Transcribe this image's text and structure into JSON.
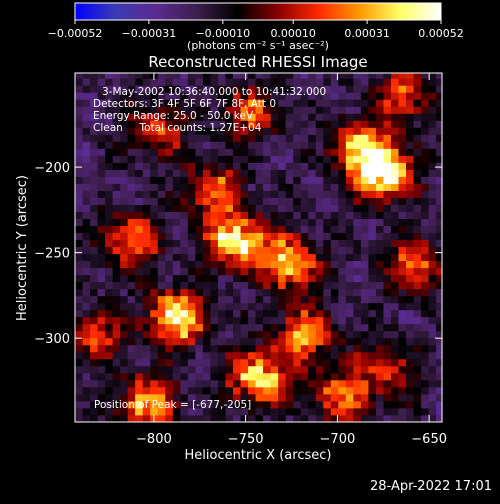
{
  "chart_data": {
    "type": "heatmap",
    "title": "Reconstructed RHESSI Image",
    "xlabel": "Heliocentric X (arcsec)",
    "ylabel": "Heliocentric Y (arcsec)",
    "xlim": [
      -843,
      -643
    ],
    "ylim": [
      -349,
      -145
    ],
    "x_ticks": [
      {
        "value": -800,
        "label": "−800"
      },
      {
        "value": -750,
        "label": "−750"
      },
      {
        "value": -700,
        "label": "−700"
      },
      {
        "value": -650,
        "label": "−650"
      }
    ],
    "y_ticks": [
      {
        "value": -200,
        "label": "−200"
      },
      {
        "value": -250,
        "label": "−250"
      },
      {
        "value": -300,
        "label": "−300"
      }
    ],
    "colorbar": {
      "min": -0.00052,
      "max": 0.00052,
      "ticks": [
        {
          "value": -0.00052,
          "label": "−0.00052"
        },
        {
          "value": -0.00031,
          "label": "−0.00031"
        },
        {
          "value": -0.0001,
          "label": "−0.00010"
        },
        {
          "value": 0.0001,
          "label": "0.00010"
        },
        {
          "value": 0.00031,
          "label": "0.00031"
        },
        {
          "value": 0.00052,
          "label": "0.00052"
        }
      ],
      "unit_label": "(photons cm⁻² s⁻¹ asec⁻²)",
      "colors": [
        "#0000ff",
        "#3b3bb4",
        "#5b2a8f",
        "#3d1e4d",
        "#000000",
        "#8b0000",
        "#ff2a00",
        "#ff9900",
        "#ffff66",
        "#ffffff"
      ]
    },
    "annotations": [
      "3-May-2002 10:36:40.000 to 10:41:32.000",
      "Detectors: 3F 4F 5F 6F 7F 8F, Att 0",
      "Energy Range: 25.0 - 50.0 keV",
      "Clean     Total counts: 1.27E+04"
    ],
    "peak_label": "Position of Peak = [-677,-205]",
    "sources": [
      {
        "x": -757,
        "y": -245,
        "value": 0.00048
      },
      {
        "x": -677,
        "y": -205,
        "value": 0.00052
      },
      {
        "x": -790,
        "y": -290,
        "value": 0.00046
      },
      {
        "x": -728,
        "y": -258,
        "value": 0.00036
      },
      {
        "x": -745,
        "y": -325,
        "value": 0.0004
      },
      {
        "x": -805,
        "y": -340,
        "value": 0.00034
      },
      {
        "x": -720,
        "y": -300,
        "value": 0.00028
      },
      {
        "x": -690,
        "y": -190,
        "value": 0.0003
      },
      {
        "x": -660,
        "y": -260,
        "value": 0.00022
      },
      {
        "x": -815,
        "y": -245,
        "value": 0.00026
      },
      {
        "x": -770,
        "y": -215,
        "value": 0.0002
      },
      {
        "x": -700,
        "y": -335,
        "value": 0.00024
      },
      {
        "x": -750,
        "y": -170,
        "value": 0.00018
      },
      {
        "x": -800,
        "y": -180,
        "value": 0.00016
      },
      {
        "x": -665,
        "y": -160,
        "value": 0.0002
      },
      {
        "x": -675,
        "y": -320,
        "value": 0.00014
      },
      {
        "x": -835,
        "y": -300,
        "value": 0.00018
      }
    ]
  },
  "footer": {
    "date": "28-Apr-2022 17:01"
  }
}
